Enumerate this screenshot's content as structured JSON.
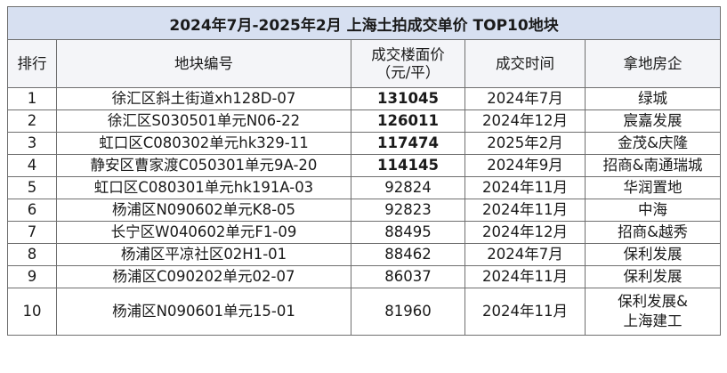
{
  "title": "2024年7月-2025年2月 上海土拍成交单价 TOP10地块",
  "headers": {
    "rank": "排行",
    "plot": "地块编号",
    "price_line1": "成交楼面价",
    "price_line2": "（元/平）",
    "time": "成交时间",
    "developer": "拿地房企"
  },
  "rows": [
    {
      "rank": "1",
      "plot": "徐汇区斜土街道xh128D-07",
      "price": "131045",
      "time": "2024年7月",
      "developer": "绿城",
      "bold": true
    },
    {
      "rank": "2",
      "plot": "徐汇区S030501单元N06-22",
      "price": "126011",
      "time": "2024年12月",
      "developer": "宸嘉发展",
      "bold": true
    },
    {
      "rank": "3",
      "plot": "虹口区C080302单元hk329-11",
      "price": "117474",
      "time": "2025年2月",
      "developer": "金茂&庆隆",
      "bold": true
    },
    {
      "rank": "4",
      "plot": "静安区曹家渡C050301单元9A-20",
      "price": "114145",
      "time": "2024年9月",
      "developer": "招商&南通瑞城",
      "bold": true
    },
    {
      "rank": "5",
      "plot": "虹口区C080301单元hk191A-03",
      "price": "92824",
      "time": "2024年11月",
      "developer": "华润置地",
      "bold": false
    },
    {
      "rank": "6",
      "plot": "杨浦区N090602单元K8-05",
      "price": "92823",
      "time": "2024年11月",
      "developer": "中海",
      "bold": false
    },
    {
      "rank": "7",
      "plot": "长宁区W040602单元F1-09",
      "price": "88495",
      "time": "2024年12月",
      "developer": "招商&越秀",
      "bold": false
    },
    {
      "rank": "8",
      "plot": "杨浦区平凉社区02H1-01",
      "price": "88462",
      "time": "2024年7月",
      "developer": "保利发展",
      "bold": false
    },
    {
      "rank": "9",
      "plot": "杨浦区C090202单元02-07",
      "price": "86037",
      "time": "2024年11月",
      "developer": "保利发展",
      "bold": false
    },
    {
      "rank": "10",
      "plot": "杨浦区N090601单元15-01",
      "price": "81960",
      "time": "2024年11月",
      "developer_line1": "保利发展&",
      "developer_line2": "上海建工",
      "bold": false
    }
  ]
}
